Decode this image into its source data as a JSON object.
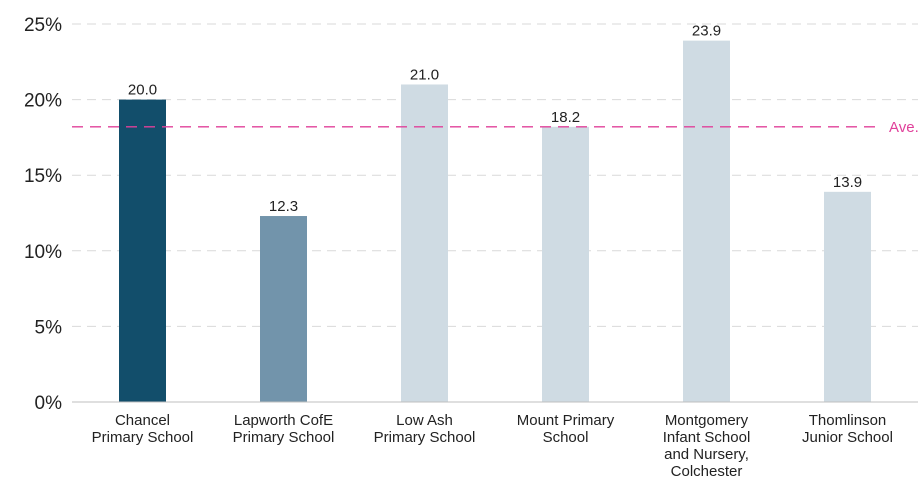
{
  "chart_data": {
    "type": "bar",
    "categories": [
      [
        "Chancel",
        "Primary School"
      ],
      [
        "Lapworth CofE",
        "Primary School"
      ],
      [
        "Low Ash",
        "Primary School"
      ],
      [
        "Mount Primary",
        "School"
      ],
      [
        "Montgomery",
        "Infant School",
        "and Nursery,",
        "Colchester"
      ],
      [
        "Thomlinson",
        "Junior School"
      ]
    ],
    "values": [
      20.0,
      12.3,
      21.0,
      18.2,
      23.9,
      13.9
    ],
    "value_labels": [
      "20.0",
      "12.3",
      "21.0",
      "18.2",
      "23.9",
      "13.9"
    ],
    "bar_colors": [
      "#124e6b",
      "#7294ab",
      "#cfdbe3",
      "#cfdbe3",
      "#cfdbe3",
      "#cfdbe3"
    ],
    "ylim": [
      0,
      25
    ],
    "yticks": [
      0,
      5,
      10,
      15,
      20,
      25
    ],
    "ytick_labels": [
      "0%",
      "5%",
      "10%",
      "15%",
      "20%",
      "25%"
    ],
    "grid": true,
    "reference_line": {
      "value": 18.2,
      "label": "Ave.",
      "color": "#e0409a"
    },
    "title": "",
    "xlabel": "",
    "ylabel": ""
  }
}
